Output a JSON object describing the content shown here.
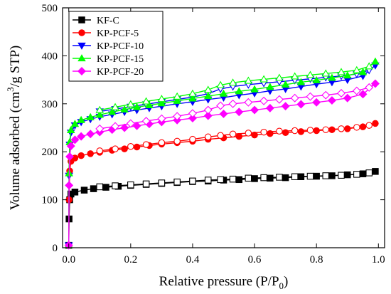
{
  "chart_data": {
    "type": "line",
    "xlabel": "Relative pressure (P/P",
    "xlabel_sub": "0",
    "xlabel_tail": ")",
    "ylabel": "Volume adsorbed (cm",
    "ylabel_sup": "3",
    "ylabel_tail": "/g STP)",
    "xlim": [
      -0.02,
      1.02
    ],
    "ylim": [
      0,
      500
    ],
    "x_ticks": [
      0.0,
      0.2,
      0.4,
      0.6,
      0.8,
      1.0
    ],
    "x_tick_labels": [
      "0.0",
      "0.2",
      "0.4",
      "0.6",
      "0.8",
      "1.0"
    ],
    "y_ticks": [
      0,
      100,
      200,
      300,
      400,
      500
    ],
    "y_tick_labels": [
      "0",
      "100",
      "200",
      "300",
      "400",
      "500"
    ],
    "legend_position": "top-left",
    "grid": false,
    "series": [
      {
        "name": "KF-C",
        "color": "#000000",
        "marker": "square",
        "adsorption": [
          [
            0.0,
            5
          ],
          [
            0.001,
            60
          ],
          [
            0.003,
            100
          ],
          [
            0.007,
            112
          ],
          [
            0.02,
            116
          ],
          [
            0.05,
            120
          ],
          [
            0.08,
            123
          ],
          [
            0.12,
            126
          ],
          [
            0.16,
            128
          ],
          [
            0.2,
            130
          ],
          [
            0.25,
            132
          ],
          [
            0.3,
            134
          ],
          [
            0.35,
            136
          ],
          [
            0.4,
            138
          ],
          [
            0.45,
            139
          ],
          [
            0.5,
            141
          ],
          [
            0.55,
            142
          ],
          [
            0.6,
            144
          ],
          [
            0.65,
            145
          ],
          [
            0.7,
            146
          ],
          [
            0.75,
            148
          ],
          [
            0.8,
            149
          ],
          [
            0.85,
            150
          ],
          [
            0.9,
            152
          ],
          [
            0.95,
            154
          ],
          [
            0.99,
            159
          ]
        ],
        "desorption": [
          [
            0.97,
            156
          ],
          [
            0.93,
            153
          ],
          [
            0.88,
            151
          ],
          [
            0.83,
            150
          ],
          [
            0.78,
            149
          ],
          [
            0.73,
            148
          ],
          [
            0.68,
            147
          ],
          [
            0.63,
            146
          ],
          [
            0.58,
            145
          ],
          [
            0.53,
            143
          ],
          [
            0.49,
            142
          ],
          [
            0.45,
            141
          ],
          [
            0.4,
            139
          ],
          [
            0.35,
            137
          ],
          [
            0.3,
            135
          ],
          [
            0.25,
            133
          ],
          [
            0.2,
            131
          ],
          [
            0.15,
            129
          ],
          [
            0.1,
            127
          ]
        ]
      },
      {
        "name": "KP-PCF-5",
        "color": "#ff0000",
        "marker": "circle",
        "adsorption": [
          [
            0.0,
            5
          ],
          [
            0.001,
            100
          ],
          [
            0.003,
            160
          ],
          [
            0.007,
            180
          ],
          [
            0.02,
            187
          ],
          [
            0.04,
            192
          ],
          [
            0.07,
            196
          ],
          [
            0.1,
            199
          ],
          [
            0.14,
            203
          ],
          [
            0.18,
            206
          ],
          [
            0.22,
            210
          ],
          [
            0.26,
            213
          ],
          [
            0.3,
            216
          ],
          [
            0.35,
            219
          ],
          [
            0.4,
            222
          ],
          [
            0.45,
            226
          ],
          [
            0.5,
            229
          ],
          [
            0.55,
            232
          ],
          [
            0.6,
            235
          ],
          [
            0.65,
            238
          ],
          [
            0.7,
            240
          ],
          [
            0.75,
            242
          ],
          [
            0.8,
            244
          ],
          [
            0.85,
            246
          ],
          [
            0.9,
            248
          ],
          [
            0.95,
            252
          ],
          [
            0.99,
            259
          ]
        ],
        "desorption": [
          [
            0.97,
            255
          ],
          [
            0.93,
            251
          ],
          [
            0.88,
            248
          ],
          [
            0.83,
            246
          ],
          [
            0.78,
            245
          ],
          [
            0.73,
            244
          ],
          [
            0.68,
            243
          ],
          [
            0.63,
            241
          ],
          [
            0.58,
            239
          ],
          [
            0.53,
            237
          ],
          [
            0.49,
            234
          ],
          [
            0.45,
            231
          ],
          [
            0.4,
            226
          ],
          [
            0.35,
            222
          ],
          [
            0.3,
            219
          ],
          [
            0.25,
            215
          ],
          [
            0.2,
            211
          ],
          [
            0.15,
            206
          ],
          [
            0.1,
            202
          ]
        ]
      },
      {
        "name": "KP-PCF-10",
        "color": "#0000ff",
        "marker": "triangle-down",
        "adsorption": [
          [
            0.0,
            5
          ],
          [
            0.001,
            150
          ],
          [
            0.003,
            215
          ],
          [
            0.007,
            240
          ],
          [
            0.02,
            255
          ],
          [
            0.04,
            262
          ],
          [
            0.07,
            268
          ],
          [
            0.1,
            273
          ],
          [
            0.14,
            278
          ],
          [
            0.18,
            283
          ],
          [
            0.22,
            287
          ],
          [
            0.26,
            291
          ],
          [
            0.3,
            295
          ],
          [
            0.35,
            300
          ],
          [
            0.4,
            304
          ],
          [
            0.45,
            309
          ],
          [
            0.5,
            313
          ],
          [
            0.55,
            318
          ],
          [
            0.6,
            322
          ],
          [
            0.65,
            327
          ],
          [
            0.7,
            331
          ],
          [
            0.75,
            336
          ],
          [
            0.8,
            341
          ],
          [
            0.85,
            345
          ],
          [
            0.9,
            350
          ],
          [
            0.95,
            358
          ],
          [
            0.99,
            380
          ]
        ],
        "desorption": [
          [
            0.97,
            370
          ],
          [
            0.93,
            362
          ],
          [
            0.88,
            358
          ],
          [
            0.83,
            355
          ],
          [
            0.78,
            352
          ],
          [
            0.73,
            349
          ],
          [
            0.68,
            346
          ],
          [
            0.63,
            343
          ],
          [
            0.58,
            340
          ],
          [
            0.53,
            336
          ],
          [
            0.49,
            331
          ],
          [
            0.45,
            321
          ],
          [
            0.4,
            314
          ],
          [
            0.35,
            309
          ],
          [
            0.3,
            304
          ],
          [
            0.25,
            299
          ],
          [
            0.2,
            294
          ],
          [
            0.15,
            289
          ],
          [
            0.1,
            284
          ]
        ]
      },
      {
        "name": "KP-PCF-15",
        "color": "#00ff00",
        "marker": "triangle-up",
        "adsorption": [
          [
            0.0,
            5
          ],
          [
            0.001,
            155
          ],
          [
            0.003,
            220
          ],
          [
            0.007,
            245
          ],
          [
            0.02,
            258
          ],
          [
            0.04,
            266
          ],
          [
            0.07,
            272
          ],
          [
            0.1,
            277
          ],
          [
            0.14,
            283
          ],
          [
            0.18,
            288
          ],
          [
            0.22,
            293
          ],
          [
            0.26,
            297
          ],
          [
            0.3,
            301
          ],
          [
            0.35,
            306
          ],
          [
            0.4,
            311
          ],
          [
            0.45,
            316
          ],
          [
            0.5,
            321
          ],
          [
            0.55,
            326
          ],
          [
            0.6,
            330
          ],
          [
            0.65,
            335
          ],
          [
            0.7,
            340
          ],
          [
            0.75,
            345
          ],
          [
            0.8,
            349
          ],
          [
            0.85,
            354
          ],
          [
            0.9,
            359
          ],
          [
            0.95,
            366
          ],
          [
            0.99,
            388
          ]
        ],
        "desorption": [
          [
            0.97,
            378
          ],
          [
            0.93,
            370
          ],
          [
            0.88,
            366
          ],
          [
            0.83,
            363
          ],
          [
            0.78,
            360
          ],
          [
            0.73,
            357
          ],
          [
            0.68,
            354
          ],
          [
            0.63,
            351
          ],
          [
            0.58,
            348
          ],
          [
            0.53,
            344
          ],
          [
            0.49,
            339
          ],
          [
            0.45,
            329
          ],
          [
            0.4,
            321
          ],
          [
            0.35,
            315
          ],
          [
            0.3,
            310
          ],
          [
            0.25,
            305
          ],
          [
            0.2,
            299
          ],
          [
            0.15,
            293
          ],
          [
            0.1,
            287
          ]
        ]
      },
      {
        "name": "KP-PCF-20",
        "color": "#ff00ff",
        "marker": "diamond",
        "adsorption": [
          [
            0.0,
            5
          ],
          [
            0.001,
            130
          ],
          [
            0.003,
            190
          ],
          [
            0.007,
            212
          ],
          [
            0.02,
            225
          ],
          [
            0.04,
            232
          ],
          [
            0.07,
            237
          ],
          [
            0.1,
            241
          ],
          [
            0.14,
            246
          ],
          [
            0.18,
            250
          ],
          [
            0.22,
            254
          ],
          [
            0.26,
            258
          ],
          [
            0.3,
            262
          ],
          [
            0.35,
            266
          ],
          [
            0.4,
            270
          ],
          [
            0.45,
            275
          ],
          [
            0.5,
            279
          ],
          [
            0.55,
            283
          ],
          [
            0.6,
            287
          ],
          [
            0.65,
            291
          ],
          [
            0.7,
            295
          ],
          [
            0.75,
            299
          ],
          [
            0.8,
            303
          ],
          [
            0.85,
            307
          ],
          [
            0.9,
            312
          ],
          [
            0.95,
            320
          ],
          [
            0.99,
            342
          ]
        ],
        "desorption": [
          [
            0.97,
            334
          ],
          [
            0.93,
            327
          ],
          [
            0.88,
            322
          ],
          [
            0.83,
            318
          ],
          [
            0.78,
            315
          ],
          [
            0.73,
            312
          ],
          [
            0.68,
            309
          ],
          [
            0.63,
            306
          ],
          [
            0.58,
            303
          ],
          [
            0.53,
            300
          ],
          [
            0.49,
            296
          ],
          [
            0.45,
            287
          ],
          [
            0.4,
            280
          ],
          [
            0.35,
            274
          ],
          [
            0.3,
            269
          ],
          [
            0.25,
            264
          ],
          [
            0.2,
            259
          ],
          [
            0.15,
            253
          ],
          [
            0.1,
            248
          ]
        ]
      }
    ]
  }
}
